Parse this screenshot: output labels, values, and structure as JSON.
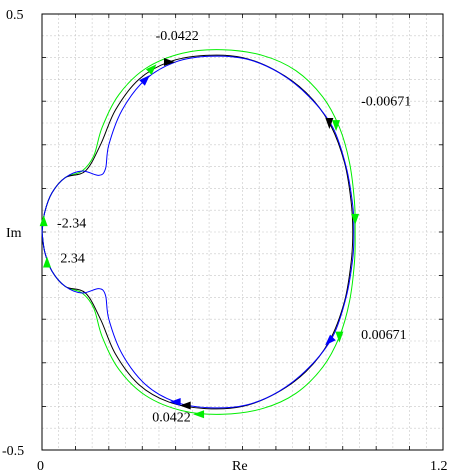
{
  "chart_data": {
    "type": "line",
    "title": "",
    "xlabel": "Re",
    "ylabel": "Im",
    "xlim": [
      0,
      1.2
    ],
    "ylim": [
      -0.5,
      0.5
    ],
    "x_tick_labels": [
      "0",
      "1.2"
    ],
    "y_tick_labels": [
      "0.5",
      "-0.5"
    ],
    "grid": true,
    "series": [
      {
        "color": "#00ee00",
        "points": [
          [
            0.0,
            0.0
          ],
          [
            0.008,
            0.045
          ],
          [
            0.03,
            0.09
          ],
          [
            0.07,
            0.125
          ],
          [
            0.12,
            0.14
          ],
          [
            0.155,
            0.175
          ],
          [
            0.18,
            0.24
          ],
          [
            0.23,
            0.315
          ],
          [
            0.31,
            0.375
          ],
          [
            0.42,
            0.41
          ],
          [
            0.54,
            0.418
          ],
          [
            0.66,
            0.405
          ],
          [
            0.76,
            0.37
          ],
          [
            0.84,
            0.31
          ],
          [
            0.89,
            0.24
          ],
          [
            0.92,
            0.16
          ],
          [
            0.935,
            0.07
          ],
          [
            0.937,
            0.0
          ],
          [
            0.935,
            -0.07
          ],
          [
            0.92,
            -0.16
          ],
          [
            0.89,
            -0.24
          ],
          [
            0.84,
            -0.31
          ],
          [
            0.76,
            -0.37
          ],
          [
            0.66,
            -0.405
          ],
          [
            0.54,
            -0.418
          ],
          [
            0.42,
            -0.41
          ],
          [
            0.31,
            -0.375
          ],
          [
            0.23,
            -0.315
          ],
          [
            0.18,
            -0.24
          ],
          [
            0.155,
            -0.175
          ],
          [
            0.12,
            -0.14
          ],
          [
            0.07,
            -0.125
          ],
          [
            0.03,
            -0.09
          ],
          [
            0.008,
            -0.045
          ],
          [
            0.0,
            0.0
          ]
        ]
      },
      {
        "color": "#000000",
        "points": [
          [
            0.0,
            0.0
          ],
          [
            0.008,
            0.045
          ],
          [
            0.03,
            0.09
          ],
          [
            0.07,
            0.125
          ],
          [
            0.13,
            0.14
          ],
          [
            0.175,
            0.2
          ],
          [
            0.22,
            0.28
          ],
          [
            0.29,
            0.35
          ],
          [
            0.38,
            0.39
          ],
          [
            0.49,
            0.405
          ],
          [
            0.6,
            0.4
          ],
          [
            0.7,
            0.37
          ],
          [
            0.79,
            0.32
          ],
          [
            0.86,
            0.25
          ],
          [
            0.905,
            0.16
          ],
          [
            0.925,
            0.07
          ],
          [
            0.93,
            0.0
          ],
          [
            0.925,
            -0.07
          ],
          [
            0.905,
            -0.16
          ],
          [
            0.86,
            -0.25
          ],
          [
            0.79,
            -0.32
          ],
          [
            0.7,
            -0.37
          ],
          [
            0.6,
            -0.4
          ],
          [
            0.49,
            -0.405
          ],
          [
            0.38,
            -0.39
          ],
          [
            0.29,
            -0.35
          ],
          [
            0.22,
            -0.28
          ],
          [
            0.175,
            -0.2
          ],
          [
            0.13,
            -0.14
          ],
          [
            0.07,
            -0.125
          ],
          [
            0.03,
            -0.09
          ],
          [
            0.008,
            -0.045
          ],
          [
            0.0,
            0.0
          ]
        ]
      },
      {
        "color": "#0000ff",
        "points": [
          [
            0.0,
            0.0
          ],
          [
            0.008,
            0.045
          ],
          [
            0.03,
            0.09
          ],
          [
            0.07,
            0.125
          ],
          [
            0.12,
            0.14
          ],
          [
            0.17,
            0.13
          ],
          [
            0.19,
            0.145
          ],
          [
            0.2,
            0.2
          ],
          [
            0.24,
            0.28
          ],
          [
            0.31,
            0.35
          ],
          [
            0.4,
            0.39
          ],
          [
            0.5,
            0.403
          ],
          [
            0.61,
            0.397
          ],
          [
            0.71,
            0.365
          ],
          [
            0.8,
            0.31
          ],
          [
            0.87,
            0.24
          ],
          [
            0.91,
            0.15
          ],
          [
            0.93,
            0.06
          ],
          [
            0.933,
            0.0
          ],
          [
            0.93,
            -0.06
          ],
          [
            0.91,
            -0.15
          ],
          [
            0.87,
            -0.24
          ],
          [
            0.8,
            -0.31
          ],
          [
            0.71,
            -0.365
          ],
          [
            0.61,
            -0.397
          ],
          [
            0.5,
            -0.403
          ],
          [
            0.4,
            -0.39
          ],
          [
            0.31,
            -0.35
          ],
          [
            0.24,
            -0.28
          ],
          [
            0.2,
            -0.2
          ],
          [
            0.19,
            -0.145
          ],
          [
            0.17,
            -0.13
          ],
          [
            0.12,
            -0.14
          ],
          [
            0.07,
            -0.125
          ],
          [
            0.03,
            -0.09
          ],
          [
            0.008,
            -0.045
          ],
          [
            0.0,
            0.0
          ]
        ]
      }
    ],
    "arrows": [
      {
        "color": "#000000",
        "x": 0.38,
        "y": 0.39,
        "dir": "right"
      },
      {
        "color": "#0000ff",
        "x": 0.31,
        "y": 0.35,
        "dir": "upright"
      },
      {
        "color": "#00ee00",
        "x": 0.33,
        "y": 0.375,
        "dir": "upright"
      },
      {
        "color": "#000000",
        "x": 0.86,
        "y": 0.25,
        "dir": "down"
      },
      {
        "color": "#00ee00",
        "x": 0.88,
        "y": 0.245,
        "dir": "down"
      },
      {
        "color": "#00ee00",
        "x": 0.937,
        "y": 0.03,
        "dir": "down"
      },
      {
        "color": "#00ee00",
        "x": 0.89,
        "y": -0.24,
        "dir": "down"
      },
      {
        "color": "#0000ff",
        "x": 0.86,
        "y": -0.25,
        "dir": "downleft"
      },
      {
        "color": "#0000ff",
        "x": 0.4,
        "y": -0.39,
        "dir": "left"
      },
      {
        "color": "#000000",
        "x": 0.43,
        "y": -0.398,
        "dir": "left"
      },
      {
        "color": "#00ee00",
        "x": 0.47,
        "y": -0.418,
        "dir": "left"
      },
      {
        "color": "#00ee00",
        "x": 0.005,
        "y": 0.025,
        "dir": "up"
      },
      {
        "color": "#00ee00",
        "x": 0.015,
        "y": -0.07,
        "dir": "up"
      }
    ],
    "annotations": [
      {
        "text": "-0.0422",
        "x": 0.34,
        "y": 0.44
      },
      {
        "text": "-0.00671",
        "x": 0.955,
        "y": 0.29
      },
      {
        "text": "-2.34",
        "x": 0.045,
        "y": 0.01
      },
      {
        "text": "2.34",
        "x": 0.055,
        "y": -0.07
      },
      {
        "text": "0.00671",
        "x": 0.955,
        "y": -0.245
      },
      {
        "text": "0.0422",
        "x": 0.33,
        "y": -0.435
      }
    ]
  }
}
